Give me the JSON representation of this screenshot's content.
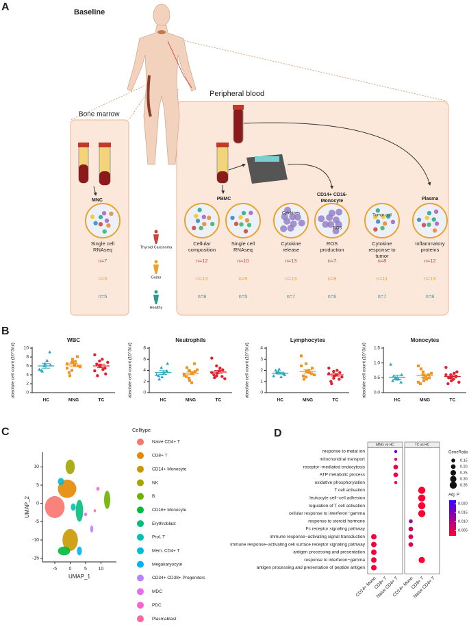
{
  "panel_a": {
    "label": "A",
    "baseline": "Baseline",
    "peripheral_blood": "Peripheral blood",
    "bone_marrow": "Bone marrow",
    "headers": {
      "mnc": "MNC",
      "pbmc": "PBMC",
      "monocyte": [
        "CD14+ CD16-",
        "Monocyte"
      ],
      "plasma": "Plasma"
    },
    "inner_labels": {
      "cytokines": "Cytokines",
      "ros": "ROS",
      "tumor": "Tumor cell"
    },
    "groups": [
      {
        "name": "Thyroid Carcinoma",
        "color": "#c8453c"
      },
      {
        "name": "Goiter",
        "color": "#e8a42a"
      },
      {
        "name": "Healthy",
        "color": "#2a9d8f"
      }
    ],
    "assays": [
      {
        "label": [
          "Single cell",
          "RNAseq"
        ],
        "counts": [
          "n=7",
          "n=3",
          "n=5"
        ]
      },
      {
        "label": [
          "Cellular",
          "composition"
        ],
        "counts": [
          "n=12",
          "n=13",
          "n=8"
        ]
      },
      {
        "label": [
          "Single cell",
          "RNAseq"
        ],
        "counts": [
          "n=10",
          "n=9",
          "n=5"
        ]
      },
      {
        "label": [
          "Cytokine",
          "release"
        ],
        "counts": [
          "n=13",
          "n=13",
          "n=7"
        ]
      },
      {
        "label": [
          "ROS",
          "production"
        ],
        "counts": [
          "n=7",
          "n=8",
          "n=6"
        ]
      },
      {
        "label": [
          "Cytokine",
          "response to",
          "tumor"
        ],
        "counts": [
          "n=8",
          "n=11",
          "n=7"
        ]
      },
      {
        "label": [
          "Inflammatory",
          "proteins"
        ],
        "counts": [
          "n=12",
          "n=13",
          "n=8"
        ]
      }
    ]
  },
  "panel_b": {
    "label": "B",
    "ylabel": "absolute cell count (10^3/ul)",
    "categories": [
      "HC",
      "MNG",
      "TC"
    ],
    "charts": [
      {
        "type": "scatter",
        "title": "WBC",
        "ylim": [
          0,
          10
        ],
        "yticks": [
          0,
          2,
          4,
          6,
          8,
          10
        ],
        "series": [
          {
            "color": "#2aa7c0",
            "marker": "triangle",
            "values": [
              5.2,
              6.0,
              6.5,
              9.1,
              6.2,
              5.0,
              4.8,
              7.2
            ],
            "mean": 6.0,
            "sem": 0.5
          },
          {
            "color": "#f0941f",
            "marker": "square",
            "values": [
              5.5,
              6.8,
              7.5,
              8.1,
              6.0,
              4.5,
              3.8,
              6.2,
              7.0,
              5.8,
              6.5,
              5.0,
              6.9
            ],
            "mean": 6.2,
            "sem": 0.35
          },
          {
            "color": "#e0202a",
            "marker": "circle",
            "values": [
              8.5,
              7.1,
              6.0,
              5.5,
              4.2,
              6.4,
              3.8,
              7.5,
              5.2,
              6.8,
              4.9,
              6.0
            ],
            "mean": 6.0,
            "sem": 0.4
          }
        ]
      },
      {
        "type": "scatter",
        "title": "Neutrophils",
        "ylim": [
          0,
          8
        ],
        "yticks": [
          0,
          2,
          4,
          6,
          8
        ],
        "series": [
          {
            "color": "#2aa7c0",
            "marker": "triangle",
            "values": [
              3.2,
              4.5,
              2.8,
              3.9,
              5.2,
              3.0,
              2.4,
              3.6
            ],
            "mean": 3.6,
            "sem": 0.35
          },
          {
            "color": "#f0941f",
            "marker": "square",
            "values": [
              3.1,
              4.0,
              2.2,
              5.2,
              3.8,
              2.9,
              4.5,
              1.8,
              3.5,
              4.1,
              3.3,
              2.6,
              3.9
            ],
            "mean": 3.5,
            "sem": 0.28
          },
          {
            "color": "#e0202a",
            "marker": "circle",
            "values": [
              6.2,
              4.8,
              3.5,
              2.9,
              4.1,
              3.2,
              2.7,
              3.9,
              4.4,
              2.5,
              3.6,
              3.0
            ],
            "mean": 3.7,
            "sem": 0.3
          }
        ]
      },
      {
        "type": "scatter",
        "title": "Lymphocytes",
        "ylim": [
          0,
          4
        ],
        "yticks": [
          0,
          1,
          2,
          3,
          4
        ],
        "series": [
          {
            "color": "#2aa7c0",
            "marker": "triangle",
            "values": [
              1.5,
              1.9,
              2.1,
              1.7,
              1.6,
              2.0,
              1.8,
              1.4
            ],
            "mean": 1.75,
            "sem": 0.09
          },
          {
            "color": "#f0941f",
            "marker": "square",
            "values": [
              3.3,
              2.6,
              1.9,
              1.7,
              2.2,
              1.5,
              1.2,
              2.0,
              1.8,
              1.6,
              2.4,
              1.4,
              1.9
            ],
            "mean": 1.9,
            "sem": 0.15
          },
          {
            "color": "#e0202a",
            "marker": "circle",
            "values": [
              2.2,
              1.9,
              1.5,
              1.2,
              1.8,
              1.0,
              0.8,
              1.6,
              2.0,
              1.4,
              1.7,
              1.3
            ],
            "mean": 1.6,
            "sem": 0.12
          }
        ]
      },
      {
        "type": "scatter",
        "title": "Monocytes",
        "ylim": [
          0,
          1.5
        ],
        "yticks": [
          {
            "value": 0,
            "label": "0.0"
          },
          0.5,
          {
            "value": 1,
            "label": "1.0"
          },
          1.5
        ],
        "series": [
          {
            "color": "#2aa7c0",
            "marker": "triangle",
            "values": [
              0.95,
              0.5,
              0.45,
              0.35,
              0.6,
              0.4,
              0.55,
              0.45
            ],
            "mean": 0.52,
            "sem": 0.07
          },
          {
            "color": "#f0941f",
            "marker": "square",
            "values": [
              0.9,
              0.7,
              0.4,
              0.6,
              0.5,
              0.3,
              0.8,
              0.55,
              0.45,
              0.65,
              0.35,
              0.6,
              0.5
            ],
            "mean": 0.57,
            "sem": 0.05
          },
          {
            "color": "#e0202a",
            "marker": "circle",
            "values": [
              0.85,
              0.6,
              0.4,
              0.55,
              0.7,
              0.3,
              0.5,
              0.45,
              0.65,
              0.35,
              0.6,
              0.5
            ],
            "mean": 0.54,
            "sem": 0.05
          }
        ]
      }
    ]
  },
  "panel_c": {
    "label": "C",
    "type": "scatter",
    "xlabel": "UMAP_1",
    "ylabel": "UMAP_2",
    "xlim": [
      -9,
      15
    ],
    "ylim": [
      -16,
      14
    ],
    "xticks": [
      -5,
      0,
      5,
      10
    ],
    "yticks": [
      -15,
      -10,
      -5,
      0,
      5,
      10
    ],
    "legend_title": "Celltype",
    "celltypes": [
      {
        "name": "Naive CD4+ T",
        "color": "#f8766d",
        "x": -5,
        "y": -1,
        "sx": 3.2,
        "sy": 3
      },
      {
        "name": "CD8+ T",
        "color": "#e58700",
        "x": -1,
        "y": 4,
        "sx": 3,
        "sy": 2.5
      },
      {
        "name": "CD14+ Monocyte",
        "color": "#c99800",
        "x": 0,
        "y": -10,
        "sx": 2.5,
        "sy": 3
      },
      {
        "name": "NK",
        "color": "#a3a500",
        "x": 0,
        "y": 10,
        "sx": 1.5,
        "sy": 2
      },
      {
        "name": "B",
        "color": "#6bb100",
        "x": 12,
        "y": 1,
        "sx": 1,
        "sy": 2.5
      },
      {
        "name": "CD16+ Monocyte",
        "color": "#00ba38",
        "x": -2,
        "y": -13,
        "sx": 2,
        "sy": 1.2
      },
      {
        "name": "Erythroblast",
        "color": "#00bf7d",
        "x": 3,
        "y": -2,
        "sx": 1.2,
        "sy": 3
      },
      {
        "name": "Prol. T",
        "color": "#00c0af",
        "x": 1,
        "y": -1,
        "sx": 0.8,
        "sy": 1
      },
      {
        "name": "Mem. CD4+ T",
        "color": "#00bcd8",
        "x": -3,
        "y": 6,
        "sx": 1,
        "sy": 1
      },
      {
        "name": "Megakaryocyte",
        "color": "#00b0f6",
        "x": 3,
        "y": -13,
        "sx": 0.8,
        "sy": 1.2
      },
      {
        "name": "CD34+ CD38+ Progenitors",
        "color": "#b983ff",
        "x": 7,
        "y": -7,
        "sx": 0.5,
        "sy": 1
      },
      {
        "name": "MDC",
        "color": "#e76bf3",
        "x": 5,
        "y": -3,
        "sx": 0.5,
        "sy": 0.5
      },
      {
        "name": "PDC",
        "color": "#fd61d1",
        "x": 9,
        "y": 4,
        "sx": 0.5,
        "sy": 0.5
      },
      {
        "name": "Plasmablast",
        "color": "#ff67a4",
        "x": 8,
        "y": -2,
        "sx": 0.4,
        "sy": 0.4
      }
    ]
  },
  "panel_d": {
    "label": "D",
    "type": "dot",
    "facets": [
      "MNG vs HC",
      "TC vs HC"
    ],
    "categories": [
      "CD14+ Mono",
      "CD8+ T",
      "Naive CD4+ T"
    ],
    "terms": [
      "response to metal ion",
      "mitochondrial transport",
      "receptor−mediated endocytosis",
      "ATP metabolic process",
      "oxidative phosphorylation",
      "T cell activation",
      "leukocyte cell−cell adhesion",
      "regulation of T cell activation",
      "cellular response to interferon−gamma",
      "response to steroid hormone",
      "Fc receptor signaling pathway",
      "immune response−activating signal transduction",
      "immune response−activating cell surface receptor signaling pathway",
      "antigen processing and presentation",
      "response to interferon−gamma",
      "antigen processing and presentation of peptide antigen"
    ],
    "points": [
      {
        "facet": 0,
        "category": 2,
        "term": 0,
        "gene_ratio": 0.1,
        "p_adj": 0.02
      },
      {
        "facet": 0,
        "category": 2,
        "term": 1,
        "gene_ratio": 0.1,
        "p_adj": 0.006
      },
      {
        "facet": 0,
        "category": 2,
        "term": 2,
        "gene_ratio": 0.2,
        "p_adj": 0.004
      },
      {
        "facet": 0,
        "category": 2,
        "term": 3,
        "gene_ratio": 0.2,
        "p_adj": 0.004
      },
      {
        "facet": 0,
        "category": 2,
        "term": 4,
        "gene_ratio": 0.1,
        "p_adj": 0.004
      },
      {
        "facet": 0,
        "category": 0,
        "term": 11,
        "gene_ratio": 0.25,
        "p_adj": 0.003
      },
      {
        "facet": 0,
        "category": 0,
        "term": 12,
        "gene_ratio": 0.25,
        "p_adj": 0.003
      },
      {
        "facet": 0,
        "category": 0,
        "term": 13,
        "gene_ratio": 0.25,
        "p_adj": 0.003
      },
      {
        "facet": 0,
        "category": 0,
        "term": 14,
        "gene_ratio": 0.25,
        "p_adj": 0.003
      },
      {
        "facet": 0,
        "category": 0,
        "term": 15,
        "gene_ratio": 0.25,
        "p_adj": 0.003
      },
      {
        "facet": 1,
        "category": 1,
        "term": 5,
        "gene_ratio": 0.35,
        "p_adj": 0.002
      },
      {
        "facet": 1,
        "category": 1,
        "term": 6,
        "gene_ratio": 0.35,
        "p_adj": 0.002
      },
      {
        "facet": 1,
        "category": 1,
        "term": 7,
        "gene_ratio": 0.35,
        "p_adj": 0.002
      },
      {
        "facet": 1,
        "category": 1,
        "term": 8,
        "gene_ratio": 0.35,
        "p_adj": 0.002
      },
      {
        "facet": 1,
        "category": 0,
        "term": 9,
        "gene_ratio": 0.15,
        "p_adj": 0.012
      },
      {
        "facet": 1,
        "category": 0,
        "term": 10,
        "gene_ratio": 0.2,
        "p_adj": 0.006
      },
      {
        "facet": 1,
        "category": 0,
        "term": 11,
        "gene_ratio": 0.2,
        "p_adj": 0.005
      },
      {
        "facet": 1,
        "category": 0,
        "term": 12,
        "gene_ratio": 0.2,
        "p_adj": 0.005
      },
      {
        "facet": 1,
        "category": 1,
        "term": 14,
        "gene_ratio": 0.3,
        "p_adj": 0.002
      }
    ],
    "size_legend": {
      "title": "GeneRatio",
      "ticks": [
        0.15,
        {
          "value": 0.2,
          "label": "0.20"
        },
        0.25,
        {
          "value": 0.3,
          "label": "0.30"
        },
        0.35
      ]
    },
    "color_legend": {
      "title": "Adj. P",
      "clim": [
        0.002,
        0.022
      ],
      "colors": [
        "#ff0033",
        "#3b00ff"
      ],
      "ticks": [
        {
          "value": 0.02,
          "label": "0.020"
        },
        0.015,
        {
          "value": 0.01,
          "label": "0.010"
        },
        0.005
      ]
    }
  }
}
